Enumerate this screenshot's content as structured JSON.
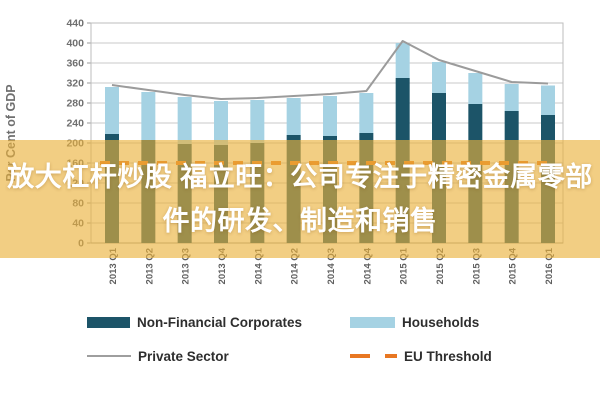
{
  "banner": {
    "line1": "放大杠杆炒股 福立旺：公司专注于精密金属零部",
    "line2": "件的研发、制造和销售",
    "text_color": "#FFFFFF",
    "background_color": "rgba(234,177,58,0.63)"
  },
  "chart_data": {
    "type": "bar",
    "stacked": true,
    "title": "",
    "xlabel": "",
    "ylabel": "Per Cent of GDP",
    "ylim": [
      0,
      440
    ],
    "ytick_step": 40,
    "grid": true,
    "legend_position": "bottom",
    "categories": [
      "2013 Q1",
      "2013 Q2",
      "2013 Q3",
      "2013 Q4",
      "2014 Q1",
      "2014 Q2",
      "2014 Q3",
      "2014 Q4",
      "2015 Q1",
      "2015 Q2",
      "2015 Q3",
      "2015 Q4",
      "2016 Q1"
    ],
    "series": [
      {
        "name": "Non-Financial Corporates",
        "type": "bar",
        "color": "#1c5468",
        "values": [
          218,
          206,
          198,
          196,
          200,
          216,
          214,
          220,
          330,
          300,
          278,
          264,
          256
        ]
      },
      {
        "name": "Households",
        "type": "bar",
        "color": "#a5d2e3",
        "values": [
          94,
          96,
          94,
          88,
          86,
          74,
          80,
          80,
          70,
          62,
          62,
          54,
          59
        ]
      },
      {
        "name": "Private Sector",
        "type": "line",
        "color": "#9b9b9b",
        "values": [
          312,
          302,
          292,
          284,
          286,
          290,
          294,
          300,
          400,
          362,
          340,
          318,
          315
        ]
      },
      {
        "name": "EU Threshold",
        "type": "dashed-line",
        "color": "#e87722",
        "value": 160
      }
    ],
    "axis_text_color": "#6f6f6f",
    "grid_color": "#c9c9c9"
  },
  "legend": {
    "items": [
      {
        "label": "Non-Financial Corporates",
        "swatch": "teal-bar"
      },
      {
        "label": "Households",
        "swatch": "lightblue-bar"
      },
      {
        "label": "Private Sector",
        "swatch": "gray-line"
      },
      {
        "label": "EU Threshold",
        "swatch": "orange-dashes"
      }
    ]
  }
}
